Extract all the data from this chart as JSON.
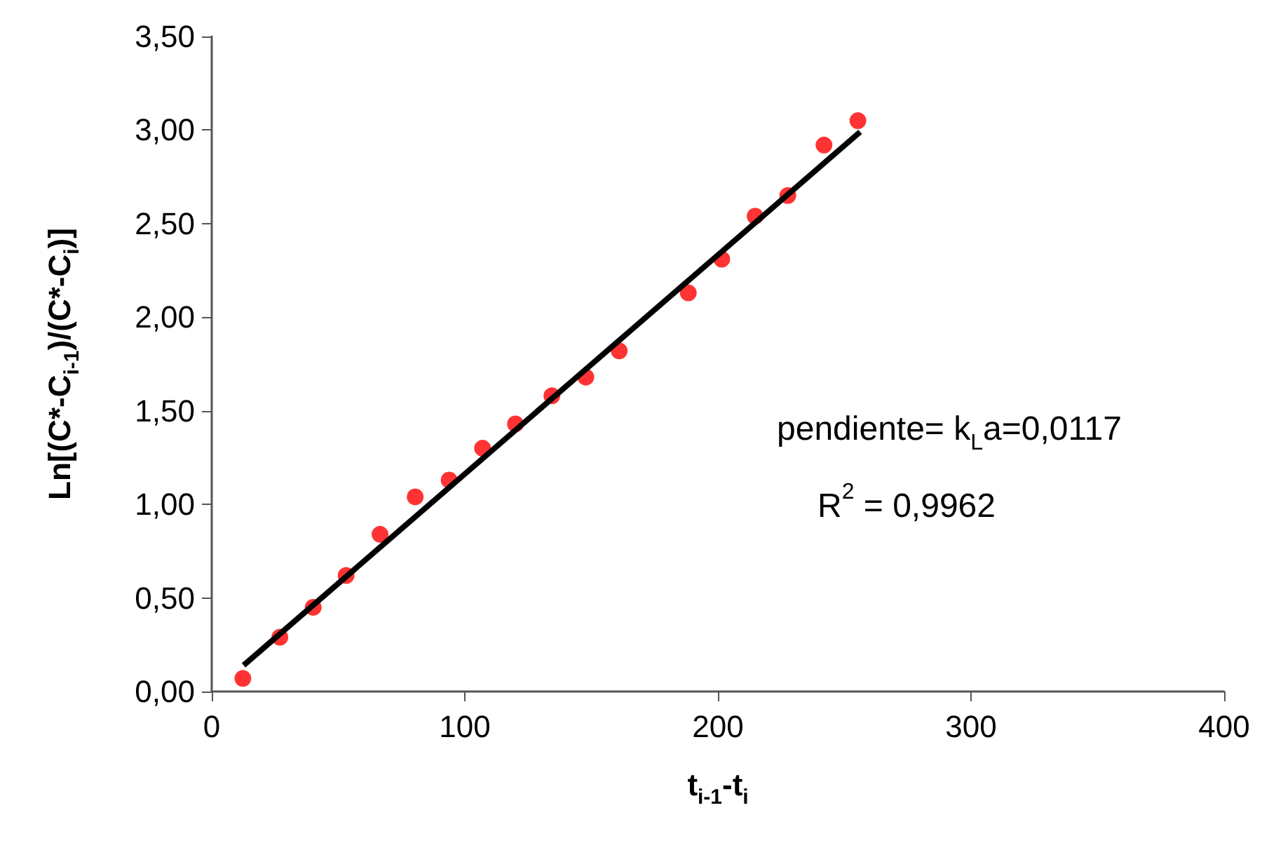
{
  "chart_data": {
    "type": "scatter",
    "xlabel": "t$_{i-1}$-t$_{i}$",
    "ylabel": "Ln[(C*-C$_{i-1}$)/(C*-C$_{i}$)]",
    "series": [
      {
        "color": "#ff0000",
        "marker": "circle",
        "x": [
          12.3,
          26.9,
          40.1,
          53.1,
          66.5,
          80.4,
          93.8,
          107.0,
          120.0,
          134.4,
          147.8,
          161.0,
          188.3,
          201.5,
          214.7,
          227.6,
          241.9,
          255.3
        ],
        "values": [
          0.07,
          0.29,
          0.45,
          0.62,
          0.84,
          1.04,
          1.13,
          1.3,
          1.43,
          1.58,
          1.68,
          1.82,
          2.13,
          2.31,
          2.54,
          2.65,
          2.92,
          3.05
        ]
      },
      {
        "type": "line",
        "color": "#000000",
        "marker": "none",
        "line_style": "solid",
        "x": [
          12.6,
          256.2
        ],
        "values": [
          0.14,
          2.99
        ]
      }
    ],
    "xlim": [
      0,
      400
    ],
    "xticks": [
      0,
      100,
      200,
      300,
      400
    ],
    "ylim": [
      0,
      3.5
    ],
    "yticks": [
      {
        "value": 0,
        "label": "0,00"
      },
      {
        "value": 0.5,
        "label": "0,50"
      },
      {
        "value": 1,
        "label": "1,00"
      },
      {
        "value": 1.5,
        "label": "1,50"
      },
      {
        "value": 2,
        "label": "2,00"
      },
      {
        "value": 2.5,
        "label": "2,50"
      },
      {
        "value": 3,
        "label": "3,00"
      },
      {
        "value": 3.5,
        "label": "3,50"
      }
    ],
    "grid": false,
    "annotations": [
      "pendiente= k$_{L}$a=0,0117",
      "R$^{2}$ = 0,9962"
    ]
  }
}
